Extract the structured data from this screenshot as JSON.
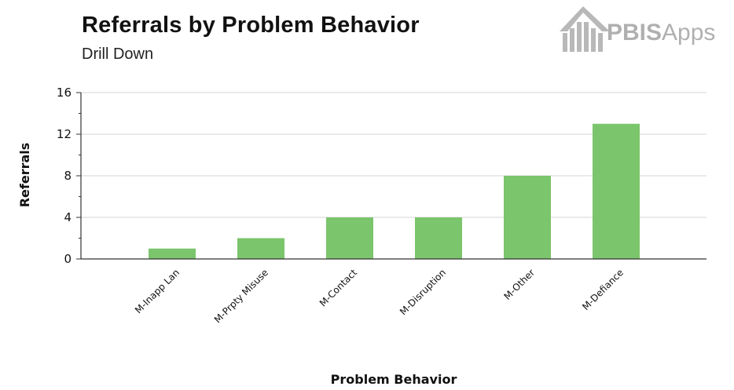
{
  "header": {
    "title": "Referrals by Problem Behavior",
    "subtitle": "Drill Down"
  },
  "logo": {
    "text_bold": "PBIS",
    "text_light": "Apps",
    "color": "#b0b0b0",
    "icon": "building-icon"
  },
  "chart_data": {
    "type": "bar",
    "title": "Referrals by Problem Behavior",
    "subtitle": "Drill Down",
    "xlabel": "Problem Behavior",
    "ylabel": "Referrals",
    "categories": [
      "M-Inapp Lan",
      "M-Prpty Misuse",
      "M-Contact",
      "M-Disruption",
      "M-Other",
      "M-Defiance"
    ],
    "values": [
      1,
      2,
      4,
      4,
      8,
      13
    ],
    "ylim": [
      0,
      16
    ],
    "yticks": [
      0,
      4,
      8,
      12,
      16
    ],
    "grid": true,
    "bar_color": "#7bc56c",
    "grid_color": "#d4d4d4",
    "axis_color": "#333333"
  }
}
